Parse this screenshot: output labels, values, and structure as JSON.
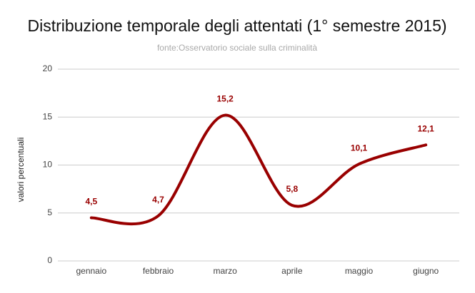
{
  "chart_data": {
    "type": "line",
    "title": "Distribuzione temporale degli attentati (1° semestre 2015)",
    "subtitle": "fonte:Osservatorio sociale sulla criminalità",
    "y_label": "valori percentuali",
    "categories": [
      "gennaio",
      "febbraio",
      "marzo",
      "aprile",
      "maggio",
      "giugno"
    ],
    "series": [
      {
        "name": "valori percentuali",
        "color": "#990000",
        "values": [
          4.5,
          4.7,
          15.2,
          5.8,
          10.1,
          12.1
        ],
        "value_labels": [
          "4,5",
          "4,7",
          "15,2",
          "5,8",
          "10,1",
          "12,1"
        ]
      }
    ],
    "ylim": [
      0,
      20
    ],
    "yticks": [
      0,
      5,
      10,
      15,
      20
    ],
    "grid": true,
    "smooth": true
  }
}
